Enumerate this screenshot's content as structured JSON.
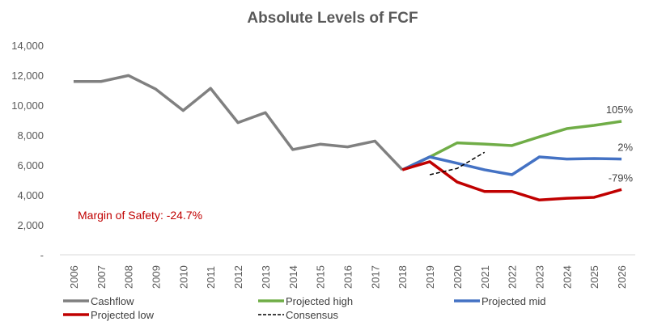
{
  "chart_data": {
    "type": "line",
    "title": "Absolute Levels of FCF",
    "xlabel": "",
    "ylabel": "",
    "ylim": [
      0,
      14000
    ],
    "yticks": [
      0,
      2000,
      4000,
      6000,
      8000,
      10000,
      12000,
      14000
    ],
    "ytick_labels": [
      "-",
      "2,000",
      "4,000",
      "6,000",
      "8,000",
      "10,000",
      "12,000",
      "14,000"
    ],
    "grid": false,
    "categories": [
      "2006",
      "2007",
      "2008",
      "2009",
      "2010",
      "2011",
      "2012",
      "2013",
      "2014",
      "2015",
      "2016",
      "2017",
      "2018",
      "2019",
      "2020",
      "2021",
      "2022",
      "2023",
      "2024",
      "2025",
      "2026"
    ],
    "series": [
      {
        "name": "Cashflow",
        "color": "#808080",
        "dashed": false,
        "values": [
          11580,
          11580,
          11980,
          11070,
          9640,
          11120,
          8830,
          9500,
          7030,
          7390,
          7210,
          7600,
          5680,
          null,
          null,
          null,
          null,
          null,
          null,
          null,
          null
        ]
      },
      {
        "name": "Projected high",
        "color": "#70ad47",
        "dashed": false,
        "values": [
          null,
          null,
          null,
          null,
          null,
          null,
          null,
          null,
          null,
          null,
          null,
          null,
          5680,
          6540,
          7480,
          7400,
          7300,
          7880,
          8430,
          8650,
          8920
        ],
        "end_label": "105%"
      },
      {
        "name": "Projected mid",
        "color": "#4472c4",
        "dashed": false,
        "values": [
          null,
          null,
          null,
          null,
          null,
          null,
          null,
          null,
          null,
          null,
          null,
          null,
          5680,
          6540,
          6120,
          5680,
          5350,
          6540,
          6400,
          6430,
          6400
        ],
        "end_label": "2%"
      },
      {
        "name": "Projected low",
        "color": "#c00000",
        "dashed": false,
        "values": [
          null,
          null,
          null,
          null,
          null,
          null,
          null,
          null,
          null,
          null,
          null,
          null,
          5680,
          6220,
          4860,
          4230,
          4230,
          3660,
          3780,
          3840,
          4360
        ],
        "end_label": "-79%"
      },
      {
        "name": "Consensus",
        "color": "#000000",
        "dashed": true,
        "values": [
          null,
          null,
          null,
          null,
          null,
          null,
          null,
          null,
          null,
          null,
          null,
          null,
          null,
          5350,
          5770,
          6850,
          null,
          null,
          null,
          null,
          null
        ]
      }
    ],
    "annotations": [
      {
        "text": "Margin of Safety: -24.7%",
        "color": "#c00000"
      }
    ],
    "legend": {
      "position": "bottom",
      "order": [
        "Cashflow",
        "Projected high",
        "Projected mid",
        "Projected low",
        "Consensus"
      ]
    }
  }
}
